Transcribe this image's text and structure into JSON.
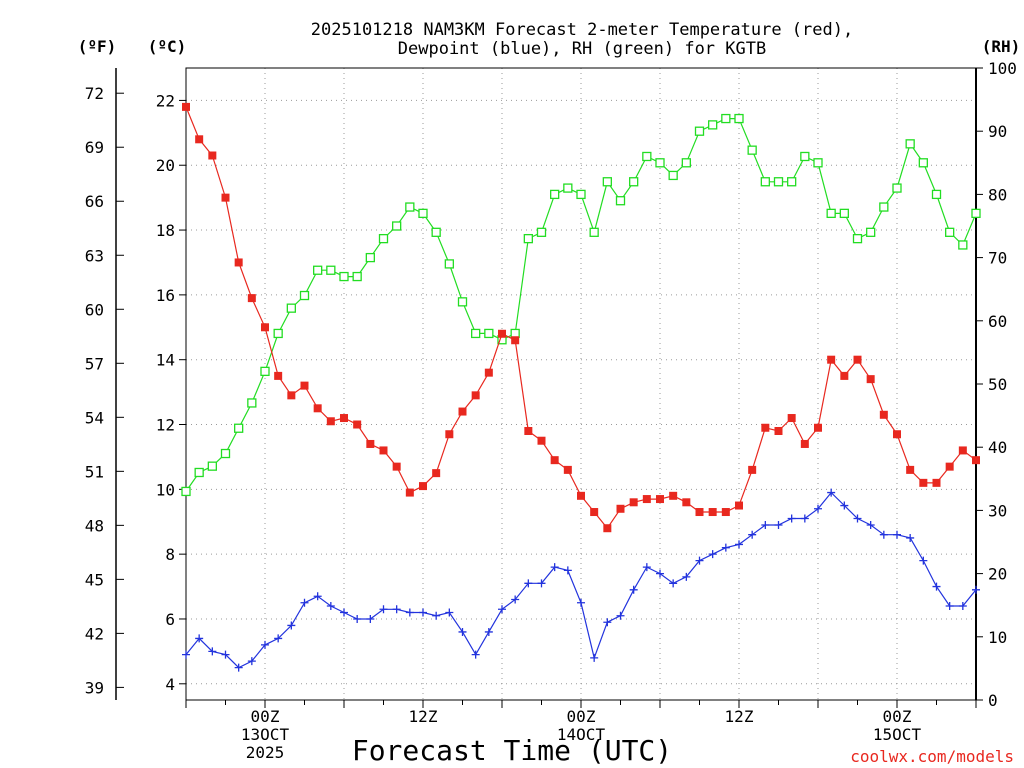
{
  "chart_data": {
    "type": "line",
    "title_line1": "2025101218 NAM3KM Forecast 2-meter Temperature (red),",
    "title_line2": "Dewpoint (blue), RH (green) for KGTB",
    "xlabel": "Forecast Time (UTC)",
    "credit": "coolwx.com/models",
    "units": {
      "fahrenheit": "(ºF)",
      "celsius": "(ºC)",
      "rh": "(RH)"
    },
    "x_range_hours": [
      0,
      60
    ],
    "x_ticks": [
      {
        "hour": 6,
        "lines": [
          "00Z",
          "13OCT",
          "2025"
        ]
      },
      {
        "hour": 18,
        "lines": [
          "12Z"
        ]
      },
      {
        "hour": 30,
        "lines": [
          "00Z",
          "14OCT"
        ]
      },
      {
        "hour": 42,
        "lines": [
          "12Z"
        ]
      },
      {
        "hour": 54,
        "lines": [
          "00Z",
          "15OCT"
        ]
      }
    ],
    "y_left_c": {
      "range": [
        3.5,
        23
      ],
      "ticks": [
        "4",
        "6",
        "8",
        "10",
        "12",
        "14",
        "16",
        "18",
        "20",
        "22"
      ]
    },
    "y_left_f": {
      "ticks": [
        "39",
        "42",
        "45",
        "48",
        "51",
        "54",
        "57",
        "60",
        "63",
        "66",
        "69",
        "72"
      ]
    },
    "y_right_rh": {
      "range": [
        0,
        100
      ],
      "ticks": [
        "0",
        "10",
        "20",
        "30",
        "40",
        "50",
        "60",
        "70",
        "80",
        "90",
        "100"
      ]
    },
    "colors": {
      "temperature": "#e8281f",
      "dewpoint": "#2233dd",
      "rh": "#22dd22",
      "grid": "#9a9a9a"
    },
    "series": [
      {
        "name": "Temperature (°C)",
        "axis": "celsius",
        "marker": "filled-square",
        "values": [
          21.8,
          20.8,
          20.3,
          19.0,
          17.0,
          15.9,
          15.0,
          13.5,
          12.9,
          13.2,
          12.5,
          12.1,
          12.2,
          12.0,
          11.4,
          11.2,
          10.7,
          9.9,
          10.1,
          10.5,
          11.7,
          12.4,
          12.9,
          13.6,
          14.8,
          14.6,
          11.8,
          11.5,
          10.9,
          10.6,
          9.8,
          9.3,
          8.8,
          9.4,
          9.6,
          9.7,
          9.7,
          9.8,
          9.6,
          9.3,
          9.3,
          9.3,
          9.5,
          10.6,
          11.9,
          11.8,
          12.2,
          11.4,
          11.9,
          14.0,
          13.5,
          14.0,
          13.4,
          12.3,
          11.7,
          10.6,
          10.2,
          10.2,
          10.7,
          11.2,
          10.9
        ]
      },
      {
        "name": "Dewpoint (°C)",
        "axis": "celsius",
        "marker": "plus",
        "values": [
          4.9,
          5.4,
          5.0,
          4.9,
          4.5,
          4.7,
          5.2,
          5.4,
          5.8,
          6.5,
          6.7,
          6.4,
          6.2,
          6.0,
          6.0,
          6.3,
          6.3,
          6.2,
          6.2,
          6.1,
          6.2,
          5.6,
          4.9,
          5.6,
          6.3,
          6.6,
          7.1,
          7.1,
          7.6,
          7.5,
          6.5,
          4.8,
          5.9,
          6.1,
          6.9,
          7.6,
          7.4,
          7.1,
          7.3,
          7.8,
          8.0,
          8.2,
          8.3,
          8.6,
          8.9,
          8.9,
          9.1,
          9.1,
          9.4,
          9.9,
          9.5,
          9.1,
          8.9,
          8.6,
          8.6,
          8.5,
          7.8,
          7.0,
          6.4,
          6.4,
          6.9
        ]
      },
      {
        "name": "RH (%)",
        "axis": "rh",
        "marker": "open-square",
        "values": [
          33,
          36,
          37,
          39,
          43,
          47,
          52,
          58,
          62,
          64,
          68,
          68,
          67,
          67,
          70,
          73,
          75,
          78,
          77,
          74,
          69,
          63,
          58,
          58,
          57,
          58,
          73,
          74,
          80,
          81,
          80,
          74,
          82,
          79,
          82,
          86,
          85,
          83,
          85,
          90,
          91,
          92,
          92,
          87,
          82,
          82,
          82,
          86,
          85,
          77,
          77,
          73,
          74,
          78,
          81,
          88,
          85,
          80,
          74,
          72,
          77
        ]
      }
    ]
  }
}
